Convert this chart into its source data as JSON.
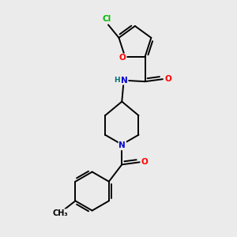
{
  "bg_color": "#ebebeb",
  "atom_colors": {
    "C": "#000000",
    "N": "#0000cc",
    "O": "#ff0000",
    "Cl": "#00bb00",
    "H": "#007070"
  },
  "bond_color": "#000000",
  "bond_width": 1.4,
  "fig_width": 3.0,
  "fig_height": 3.0,
  "dpi": 100,
  "xlim": [
    0,
    10
  ],
  "ylim": [
    0,
    10
  ]
}
